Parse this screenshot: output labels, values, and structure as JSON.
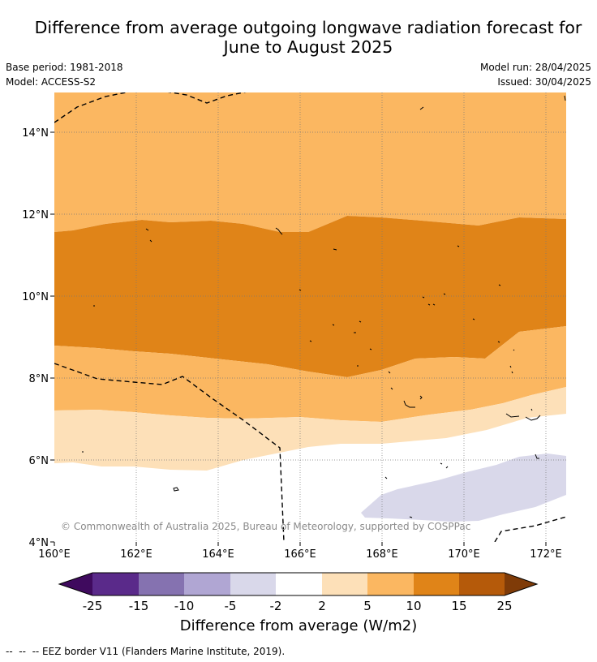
{
  "title_line1": "Difference from average outgoing longwave radiation forecast for",
  "title_line2": "June to August 2025",
  "meta_left": {
    "base_period": "Base period: 1981-2018",
    "model": "Model: ACCESS-S2"
  },
  "meta_right": {
    "model_run": "Model run: 28/04/2025",
    "issued": "Issued: 30/04/2025"
  },
  "map": {
    "lat_ticks": [
      "14°N",
      "12°N",
      "10°N",
      "8°N",
      "6°N",
      "4°N"
    ],
    "lon_ticks": [
      "160°E",
      "162°E",
      "164°E",
      "166°E",
      "168°E",
      "170°E",
      "172°E"
    ],
    "copyright": "© Commonwealth of Australia 2025, Bureau of Meteorology, supported by COSPPac"
  },
  "colorbar": {
    "levels": [
      "-25",
      "-15",
      "-10",
      "-5",
      "-2",
      "2",
      "5",
      "10",
      "15",
      "25"
    ],
    "colors": [
      "#3f0a5e",
      "#5a2a8a",
      "#8572b0",
      "#b0a6d3",
      "#d9d8ea",
      "#ffffff",
      "#fde0b8",
      "#fbb761",
      "#e08418",
      "#b55a0a",
      "#7f3b08"
    ],
    "label": "Difference from average (W/m2)"
  },
  "footnote": "--  --  -- EEZ border V11 (Flanders Marine Institute, 2019)."
}
